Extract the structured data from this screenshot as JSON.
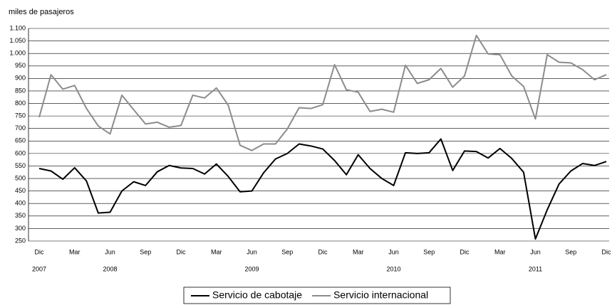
{
  "chart_data": {
    "type": "line",
    "title": "miles de pasajeros",
    "categories": [
      "Dic",
      null,
      null,
      "Mar",
      null,
      null,
      "Jun",
      null,
      null,
      "Sep",
      null,
      null,
      "Dic",
      null,
      null,
      "Mar",
      null,
      null,
      "Jun",
      null,
      null,
      "Sep",
      null,
      null,
      "Dic",
      null,
      null,
      "Mar",
      null,
      null,
      "Jun",
      null,
      null,
      "Sep",
      null,
      null,
      "Dic",
      null,
      null,
      "Mar",
      null,
      null,
      "Jun",
      null,
      null,
      "Sep",
      null,
      null,
      "Dic"
    ],
    "years": [
      "2007",
      null,
      null,
      null,
      null,
      null,
      "2008",
      null,
      null,
      null,
      null,
      null,
      null,
      null,
      null,
      null,
      null,
      null,
      "2009",
      null,
      null,
      null,
      null,
      null,
      null,
      null,
      null,
      null,
      null,
      null,
      "2010",
      null,
      null,
      null,
      null,
      null,
      null,
      null,
      null,
      null,
      null,
      null,
      "2011",
      null,
      null,
      null,
      null,
      null,
      null
    ],
    "series": [
      {
        "name": "Servicio de cabotaje",
        "color": "#000000",
        "values": [
          540,
          530,
          497,
          543,
          490,
          362,
          365,
          450,
          487,
          472,
          527,
          552,
          542,
          540,
          518,
          558,
          508,
          447,
          450,
          523,
          578,
          600,
          638,
          630,
          618,
          572,
          515,
          595,
          540,
          500,
          472,
          603,
          600,
          603,
          658,
          532,
          610,
          608,
          582,
          620,
          580,
          525,
          258,
          375,
          478,
          530,
          560,
          552,
          568
        ]
      },
      {
        "name": "Servicio internacional",
        "color": "#8c8c8c",
        "values": [
          745,
          915,
          857,
          872,
          780,
          710,
          678,
          833,
          775,
          718,
          725,
          705,
          712,
          833,
          822,
          862,
          793,
          633,
          612,
          638,
          638,
          698,
          783,
          780,
          795,
          955,
          855,
          845,
          768,
          777,
          765,
          953,
          880,
          895,
          940,
          865,
          910,
          1072,
          998,
          995,
          910,
          868,
          738,
          995,
          965,
          962,
          935,
          895,
          915
        ]
      }
    ],
    "ylim": [
      250,
      1100
    ],
    "yticks": [
      250,
      300,
      350,
      400,
      450,
      500,
      550,
      600,
      650,
      700,
      750,
      800,
      850,
      900,
      950,
      {
        "value": 1000,
        "label": "1.000"
      },
      {
        "value": 1050,
        "label": "1.050"
      },
      {
        "value": 1100,
        "label": "1.100"
      }
    ],
    "grid": true,
    "legend": "bottom"
  }
}
